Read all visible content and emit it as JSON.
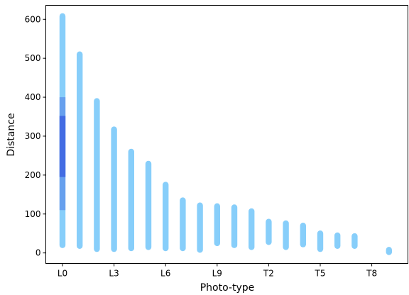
{
  "chart_data": {
    "type": "scatter",
    "title": "",
    "xlabel": "Photo-type",
    "ylabel": "Distance",
    "ylim": [
      -27,
      636
    ],
    "x_categories": [
      "L0",
      "L1",
      "L2",
      "L3",
      "L4",
      "L5",
      "L6",
      "L7",
      "L8",
      "L9",
      "T0",
      "T1",
      "T2",
      "T3",
      "T4",
      "T5",
      "T6",
      "T7",
      "T8",
      "T9"
    ],
    "x_tick_labels": [
      "L0",
      "L3",
      "L6",
      "L9",
      "T2",
      "T5",
      "T8"
    ],
    "x_tick_positions": [
      "L0",
      "L3",
      "L6",
      "L9",
      "T2",
      "T5",
      "T8"
    ],
    "y_ticks": [
      0,
      100,
      200,
      300,
      400,
      500,
      600
    ],
    "grid": false,
    "legend": "none",
    "colors": {
      "points": "#87CEFA",
      "dense": "#4169E1"
    },
    "columns": [
      {
        "category": "L0",
        "min": 20,
        "max": 608,
        "dense": [
          [
            110,
            400,
            0.45
          ],
          [
            195,
            352,
            0.95
          ]
        ]
      },
      {
        "category": "L1",
        "min": 18,
        "max": 510
      },
      {
        "category": "L2",
        "min": 10,
        "max": 390
      },
      {
        "category": "L3",
        "min": 10,
        "max": 317
      },
      {
        "category": "L4",
        "min": 12,
        "max": 260
      },
      {
        "category": "L5",
        "min": 15,
        "max": 229
      },
      {
        "category": "L6",
        "min": 12,
        "max": 175
      },
      {
        "category": "L7",
        "min": 12,
        "max": 135
      },
      {
        "category": "L8",
        "min": 8,
        "max": 122
      },
      {
        "category": "L9",
        "min": 25,
        "max": 120
      },
      {
        "category": "T0",
        "min": 20,
        "max": 117
      },
      {
        "category": "T1",
        "min": 15,
        "max": 107
      },
      {
        "category": "T2",
        "min": 28,
        "max": 80
      },
      {
        "category": "T3",
        "min": 15,
        "max": 76
      },
      {
        "category": "T4",
        "min": 22,
        "max": 70
      },
      {
        "category": "T5",
        "min": 10,
        "max": 50
      },
      {
        "category": "T6",
        "min": 18,
        "max": 45
      },
      {
        "category": "T7",
        "min": 18,
        "max": 43
      },
      {
        "category": "T8",
        "min": null,
        "max": null
      },
      {
        "category": "T9",
        "min": 2,
        "max": 8
      }
    ]
  }
}
